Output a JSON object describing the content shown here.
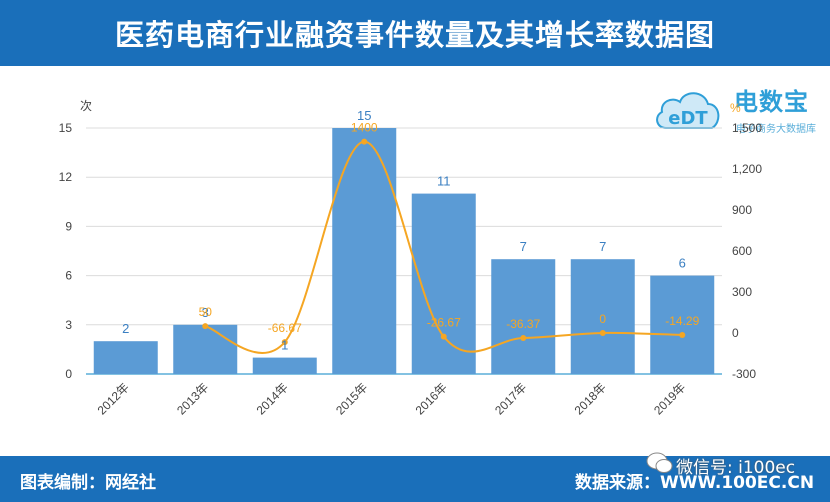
{
  "header": {
    "title": "医药电商行业融资事件数量及其增长率数据图"
  },
  "footer": {
    "left": "图表编制：网经社",
    "right": "数据来源：WWW.100EC.CN",
    "watermark": "微信号: i100ec"
  },
  "logo": {
    "brand": "电数宝",
    "sub": "电子商务大数据库",
    "badge": "eDT"
  },
  "colors": {
    "header": "#1a6fba",
    "bar": "#5b9bd5",
    "line": "#f5a623",
    "grid": "#dcdcdc"
  },
  "chart_data": {
    "type": "bar",
    "title": "医药电商行业融资事件数量及其增长率数据图",
    "categories": [
      "2012年",
      "2013年",
      "2014年",
      "2015年",
      "2016年",
      "2017年",
      "2018年",
      "2019年"
    ],
    "series": [
      {
        "name": "融资事件数量",
        "type": "bar",
        "axis": "left",
        "values": [
          2,
          3,
          1,
          15,
          11,
          7,
          7,
          6
        ]
      },
      {
        "name": "增长率",
        "type": "line",
        "axis": "right",
        "values": [
          null,
          50,
          -66.67,
          1400,
          -26.67,
          -36.37,
          0,
          -14.29
        ]
      }
    ],
    "ylabel_left": "次",
    "ylabel_right": "%",
    "ylim_left": [
      0,
      15
    ],
    "ylim_right": [
      -300,
      1500
    ],
    "yticks_left": [
      "0",
      "3",
      "6",
      "9",
      "12",
      "15"
    ],
    "yticks_right": [
      "-300",
      "0",
      "300",
      "600",
      "900",
      "1,200",
      "1,500"
    ],
    "bar_labels": [
      "2",
      "3",
      "1",
      "15",
      "11",
      "7",
      "7",
      "6"
    ],
    "line_labels": [
      "",
      "50",
      "-66.67",
      "1400",
      "-26.67",
      "-36.37",
      "0",
      "-14.29"
    ],
    "grid": true
  }
}
